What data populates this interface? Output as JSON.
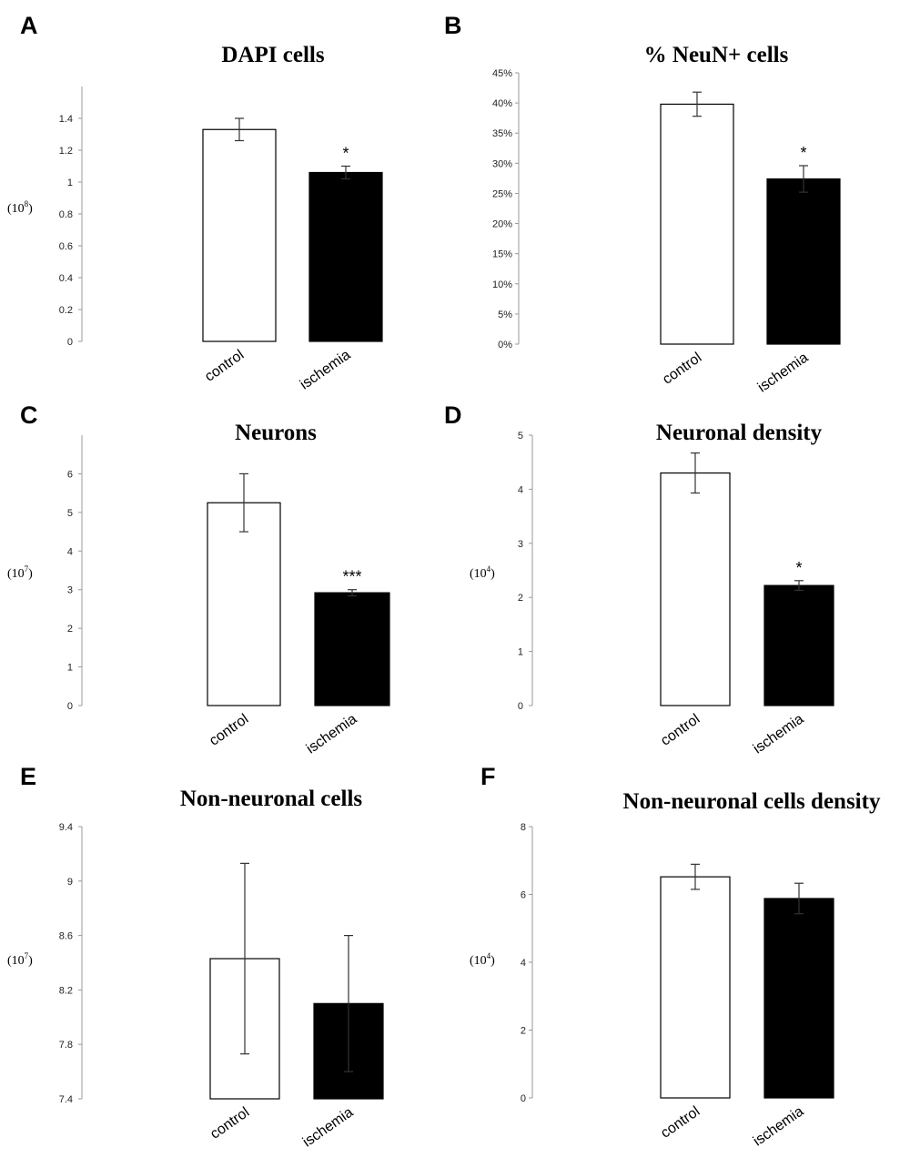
{
  "chart_data": [
    {
      "type": "bar",
      "panel": "A",
      "title": "DAPI cells",
      "unit": {
        "base": "(10",
        "exp": "8",
        "close": ")"
      },
      "categories": [
        "control",
        "ischemia"
      ],
      "values": [
        1.33,
        1.06
      ],
      "errors": [
        0.07,
        0.04
      ],
      "significance": [
        "",
        "*"
      ],
      "ylim": [
        0,
        1.6
      ],
      "yticks": [
        "0",
        "0.2",
        "0.4",
        "0.6",
        "0.8",
        "1",
        "1.2",
        "1.4"
      ],
      "ytick_values": [
        0,
        0.2,
        0.4,
        0.6,
        0.8,
        1,
        1.2,
        1.4
      ],
      "fills": [
        "#ffffff",
        "#000000"
      ]
    },
    {
      "type": "bar",
      "panel": "B",
      "title": "% NeuN+ cells",
      "unit": null,
      "categories": [
        "control",
        "ischemia"
      ],
      "values": [
        0.398,
        0.274
      ],
      "errors": [
        0.02,
        0.022
      ],
      "significance": [
        "",
        "*"
      ],
      "ylim": [
        0,
        0.45
      ],
      "yticks": [
        "0%",
        "5%",
        "10%",
        "15%",
        "20%",
        "25%",
        "30%",
        "35%",
        "40%",
        "45%"
      ],
      "ytick_values": [
        0,
        0.05,
        0.1,
        0.15,
        0.2,
        0.25,
        0.3,
        0.35,
        0.4,
        0.45
      ],
      "fills": [
        "#ffffff",
        "#000000"
      ]
    },
    {
      "type": "bar",
      "panel": "C",
      "title": "Neurons",
      "unit": {
        "base": "(10",
        "exp": "7",
        "close": ")"
      },
      "categories": [
        "control",
        "ischemia"
      ],
      "values": [
        5.25,
        2.92
      ],
      "errors": [
        0.75,
        0.08
      ],
      "significance": [
        "",
        "***"
      ],
      "ylim": [
        0,
        7
      ],
      "yticks": [
        "0",
        "1",
        "2",
        "3",
        "4",
        "5",
        "6"
      ],
      "ytick_values": [
        0,
        1,
        2,
        3,
        4,
        5,
        6
      ],
      "fills": [
        "#ffffff",
        "#000000"
      ]
    },
    {
      "type": "bar",
      "panel": "D",
      "title": "Neuronal density",
      "unit": {
        "base": "(10",
        "exp": "4",
        "close": ")"
      },
      "categories": [
        "control",
        "ischemia"
      ],
      "values": [
        4.3,
        2.22
      ],
      "errors": [
        0.37,
        0.09
      ],
      "significance": [
        "",
        "*"
      ],
      "ylim": [
        0,
        5
      ],
      "yticks": [
        "0",
        "1",
        "2",
        "3",
        "4",
        "5"
      ],
      "ytick_values": [
        0,
        1,
        2,
        3,
        4,
        5
      ],
      "fills": [
        "#ffffff",
        "#000000"
      ]
    },
    {
      "type": "bar",
      "panel": "E",
      "title": "Non-neuronal cells",
      "unit": {
        "base": "(10",
        "exp": "7",
        "close": ")"
      },
      "categories": [
        "control",
        "ischemia"
      ],
      "values": [
        8.43,
        8.1
      ],
      "errors": [
        0.7,
        0.5
      ],
      "significance": [
        "",
        ""
      ],
      "ylim": [
        7.4,
        9.4
      ],
      "yticks": [
        "7.4",
        "7.8",
        "8.2",
        "8.6",
        "9",
        "9.4"
      ],
      "ytick_values": [
        7.4,
        7.8,
        8.2,
        8.6,
        9,
        9.4
      ],
      "fills": [
        "#ffffff",
        "#000000"
      ]
    },
    {
      "type": "bar",
      "panel": "F",
      "title": "Non-neuronal cells density",
      "unit": {
        "base": "(10",
        "exp": "4",
        "close": ")"
      },
      "categories": [
        "control",
        "ischemia"
      ],
      "values": [
        6.52,
        5.88
      ],
      "errors": [
        0.37,
        0.45
      ],
      "significance": [
        "",
        ""
      ],
      "ylim": [
        0,
        8
      ],
      "yticks": [
        "0",
        "2",
        "4",
        "6",
        "8"
      ],
      "ytick_values": [
        0,
        2,
        4,
        6,
        8
      ],
      "fills": [
        "#ffffff",
        "#000000"
      ]
    }
  ]
}
